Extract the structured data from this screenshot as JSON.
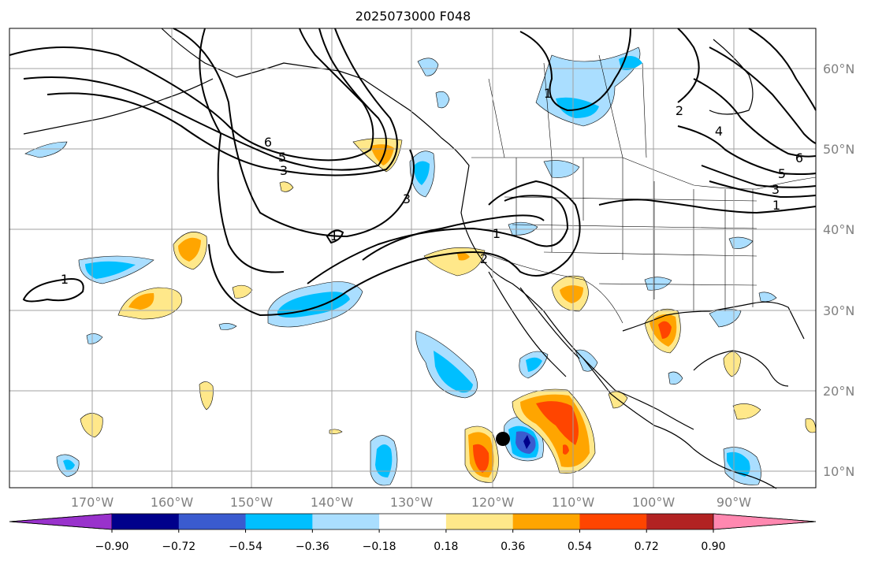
{
  "title": "2025073000 F048",
  "longitude_labels": [
    "170°W",
    "160°W",
    "150°W",
    "140°W",
    "130°W",
    "120°W",
    "110°W",
    "100°W",
    "90°W"
  ],
  "latitude_labels": [
    "60°N",
    "50°N",
    "40°N",
    "30°N",
    "20°N",
    "10°N"
  ],
  "colorbar": {
    "ticks": [
      "−0.90",
      "−0.72",
      "−0.54",
      "−0.36",
      "−0.18",
      "0.18",
      "0.36",
      "0.54",
      "0.72",
      "0.90"
    ],
    "colors": [
      "#9932cc",
      "#00008b",
      "#3a5bcf",
      "#00bfff",
      "#aadeff",
      "#ffffff",
      "#ffe88a",
      "#ffa500",
      "#ff4500",
      "#b22222",
      "#ff88b0"
    ]
  },
  "contour_labels": [
    "1",
    "1",
    "1",
    "1",
    "1",
    "2",
    "2",
    "3",
    "3",
    "3",
    "4",
    "5",
    "5",
    "6",
    "6"
  ],
  "colors": {
    "grid": "#a0a0a0",
    "contour": "#000000",
    "storm_marker": "#000000"
  }
}
